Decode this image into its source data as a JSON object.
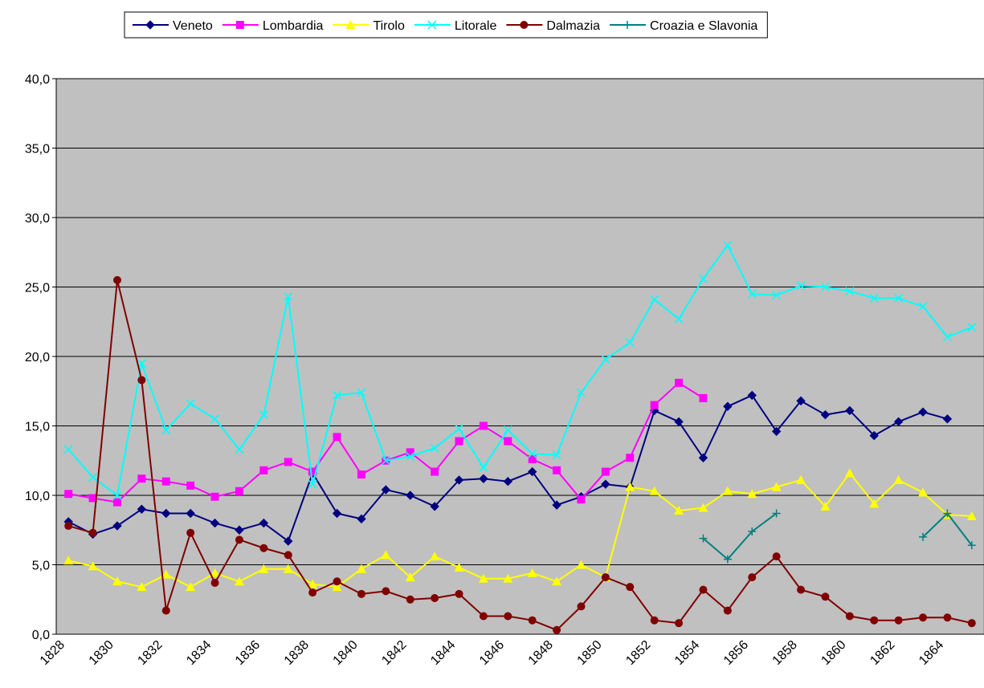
{
  "chart_data": {
    "type": "line",
    "categories": [
      "1828",
      null,
      "1830",
      null,
      "1832",
      null,
      "1834",
      null,
      "1836",
      null,
      "1838",
      null,
      "1840",
      null,
      "1842",
      null,
      "1844",
      null,
      "1846",
      null,
      "1848",
      null,
      "1850",
      null,
      "1852",
      null,
      "1854",
      null,
      "1856",
      null,
      "1858",
      null,
      "1860",
      null,
      "1862",
      null,
      "1864",
      null
    ],
    "ylim": [
      0,
      40
    ],
    "yticks": [
      {
        "value": 0,
        "label": "0,0"
      },
      {
        "value": 5,
        "label": "5,0"
      },
      {
        "value": 10,
        "label": "10,0"
      },
      {
        "value": 15,
        "label": "15,0"
      },
      {
        "value": 20,
        "label": "20,0"
      },
      {
        "value": 25,
        "label": "25,0"
      },
      {
        "value": 30,
        "label": "30,0"
      },
      {
        "value": 35,
        "label": "35,0"
      },
      {
        "value": 40,
        "label": "40,0"
      }
    ],
    "grid": true,
    "legend": "top",
    "series": [
      {
        "name": "Veneto",
        "color": "#000080",
        "marker": "diamond",
        "values": [
          8.1,
          7.2,
          7.8,
          9.0,
          8.7,
          8.7,
          8.0,
          7.5,
          8.0,
          6.7,
          11.6,
          8.7,
          8.3,
          10.4,
          10.0,
          9.2,
          11.1,
          11.2,
          11.0,
          11.7,
          9.3,
          9.9,
          10.8,
          10.6,
          16.1,
          15.3,
          12.7,
          16.4,
          17.2,
          14.6,
          16.8,
          15.8,
          16.1,
          14.3,
          15.3,
          16.0,
          15.5,
          null
        ]
      },
      {
        "name": "Lombardia",
        "color": "#ff00ff",
        "marker": "square",
        "values": [
          10.1,
          9.8,
          9.5,
          11.2,
          11.0,
          10.7,
          9.9,
          10.3,
          11.8,
          12.4,
          11.7,
          14.2,
          11.5,
          12.5,
          13.1,
          11.7,
          13.9,
          15.0,
          13.9,
          12.6,
          11.8,
          9.7,
          11.7,
          12.7,
          16.5,
          18.1,
          17.0,
          null,
          null,
          null,
          null,
          null,
          null,
          null,
          null,
          null,
          null,
          null
        ]
      },
      {
        "name": "Tirolo",
        "color": "#ffff00",
        "marker": "triangle",
        "values": [
          5.3,
          4.9,
          3.8,
          3.4,
          4.3,
          3.4,
          4.4,
          3.8,
          4.7,
          4.7,
          3.6,
          3.4,
          4.7,
          5.7,
          4.1,
          5.6,
          4.8,
          4.0,
          4.0,
          4.4,
          3.8,
          5.0,
          4.1,
          10.6,
          10.3,
          8.9,
          9.1,
          10.3,
          10.1,
          10.6,
          11.1,
          9.2,
          11.6,
          9.4,
          11.1,
          10.2,
          8.6,
          8.5
        ]
      },
      {
        "name": "Litorale",
        "color": "#00ffff",
        "marker": "x",
        "values": [
          13.3,
          11.3,
          10.0,
          19.5,
          14.7,
          16.6,
          15.5,
          13.3,
          15.8,
          24.3,
          10.8,
          17.2,
          17.4,
          12.5,
          12.8,
          13.4,
          14.8,
          12.0,
          14.7,
          13.0,
          12.9,
          17.4,
          19.8,
          21.0,
          24.1,
          22.7,
          25.6,
          28.0,
          24.5,
          24.4,
          25.1,
          25.0,
          24.7,
          24.2,
          24.2,
          23.6,
          21.4,
          22.1
        ]
      },
      {
        "name": "Dalmazia",
        "color": "#800000",
        "marker": "circle",
        "values": [
          7.8,
          7.3,
          25.5,
          18.3,
          1.7,
          7.3,
          3.7,
          6.8,
          6.2,
          5.7,
          3.0,
          3.8,
          2.9,
          3.1,
          2.5,
          2.6,
          2.9,
          1.3,
          1.3,
          1.0,
          0.3,
          2.0,
          4.1,
          3.4,
          1.0,
          0.8,
          3.2,
          1.7,
          4.1,
          5.6,
          3.2,
          2.7,
          1.3,
          1.0,
          1.0,
          1.2,
          1.2,
          0.8
        ]
      },
      {
        "name": "Croazia e Slavonia",
        "color": "#008080",
        "marker": "plus",
        "values": [
          null,
          null,
          null,
          null,
          null,
          null,
          null,
          null,
          null,
          null,
          null,
          null,
          null,
          null,
          null,
          null,
          null,
          null,
          null,
          null,
          null,
          null,
          null,
          null,
          null,
          null,
          6.9,
          5.4,
          7.4,
          8.7,
          null,
          null,
          null,
          null,
          null,
          7.0,
          8.7,
          6.4
        ]
      }
    ]
  }
}
